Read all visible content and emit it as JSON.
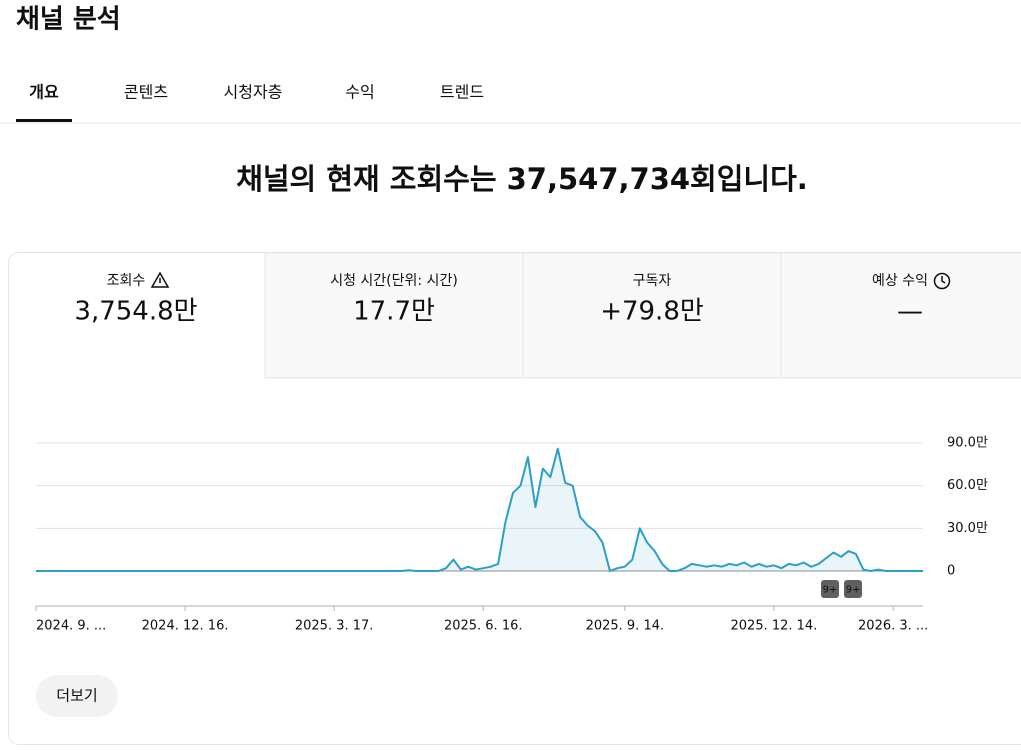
{
  "header": {
    "title": "채널 분석"
  },
  "tabs": [
    "개요",
    "콘텐츠",
    "시청자층",
    "수익",
    "트렌드"
  ],
  "headline": "채널의 현재 조회수는 37,547,734회입니다.",
  "metrics": [
    {
      "label": "조회수",
      "value": "3,754.8만"
    },
    {
      "label": "시청 시간(단위: 시간)",
      "value": "17.7만"
    },
    {
      "label": "구독자",
      "value": "+79.8만"
    },
    {
      "label": "예상 수익",
      "value": "—"
    }
  ],
  "chart_data": {
    "type": "line",
    "series": [
      {
        "color": "#2a9fc9",
        "values": [
          0,
          0,
          0,
          0,
          0,
          0,
          0,
          0,
          0,
          0,
          0,
          0,
          0,
          0,
          0,
          0,
          0,
          0,
          0,
          0,
          0,
          0,
          0,
          0,
          0,
          0,
          0,
          0,
          0,
          0,
          0,
          0,
          0,
          0,
          0,
          0,
          0,
          0,
          0,
          0,
          0,
          0,
          0,
          0,
          0,
          0,
          0,
          0,
          0,
          0,
          0.5,
          0,
          0,
          0,
          0,
          2,
          8,
          1,
          3,
          1,
          2,
          3,
          5,
          35,
          55,
          60,
          80,
          45,
          72,
          66,
          86,
          62,
          60,
          38,
          32,
          28,
          20,
          0,
          2,
          3,
          8,
          30,
          20,
          14,
          5,
          0,
          0,
          2,
          5,
          4,
          3,
          4,
          3,
          5,
          4,
          6,
          3,
          5,
          3,
          4,
          2,
          5,
          4,
          6,
          3,
          5,
          9,
          13,
          10,
          14,
          12,
          1,
          0,
          1,
          0,
          0,
          0,
          0,
          0,
          0
        ]
      }
    ],
    "xlim": [
      0,
      119
    ],
    "xticks": [
      {
        "value": 0,
        "label": "2024. 9. ..."
      },
      {
        "value": 20,
        "label": "2024. 12. 16."
      },
      {
        "value": 40,
        "label": "2025. 3. 17."
      },
      {
        "value": 60,
        "label": "2025. 6. 16."
      },
      {
        "value": 79,
        "label": "2025. 9. 14."
      },
      {
        "value": 99,
        "label": "2025. 12. 14."
      },
      {
        "value": 115,
        "label": "2026. 3. ..."
      }
    ],
    "ylim": [
      0,
      90
    ],
    "yticks": [
      0,
      {
        "value": 30,
        "label": "30.0만"
      },
      {
        "value": 60,
        "label": "60.0만"
      },
      {
        "value": 90,
        "label": "90.0만"
      }
    ],
    "grid": true,
    "badges": [
      "9+",
      "9+"
    ]
  },
  "button": "더보기"
}
